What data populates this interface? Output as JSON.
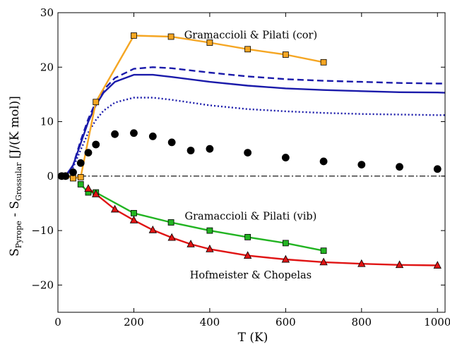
{
  "chart_data": {
    "type": "line",
    "xlabel": "T (K)",
    "ylabel": {
      "parts": [
        "S",
        "Pyrope",
        " - S",
        "Grossular",
        " [J/(K mol)]"
      ]
    },
    "xlim": [
      0,
      1020
    ],
    "ylim": [
      -25,
      30
    ],
    "xticks": [
      0,
      200,
      400,
      600,
      800,
      1000
    ],
    "yticks": [
      -20,
      -10,
      0,
      10,
      20,
      30
    ],
    "grid": false,
    "annotations": [
      {
        "text": "Gramaccioli & Pilati (cor)",
        "x": 508,
        "y": 25.3
      },
      {
        "text": "Gramaccioli & Pilati (vib)",
        "x": 508,
        "y": -8.0
      },
      {
        "text": "Hofmeister & Chopelas",
        "x": 508,
        "y": -18.8
      }
    ],
    "curves": [
      {
        "id": "model-dashed",
        "style": "dashed",
        "color": "#1a1aaa",
        "x": [
          20,
          40,
          60,
          80,
          100,
          120,
          150,
          200,
          250,
          300,
          400,
          500,
          600,
          700,
          800,
          900,
          1000,
          1020
        ],
        "y": [
          0.0,
          2.0,
          6.5,
          10.5,
          13.6,
          15.8,
          18.0,
          19.7,
          20.0,
          19.8,
          19.0,
          18.3,
          17.8,
          17.5,
          17.3,
          17.1,
          17.0,
          17.0
        ]
      },
      {
        "id": "model-solid",
        "style": "solid",
        "color": "#1a1aaa",
        "x": [
          20,
          40,
          60,
          80,
          100,
          120,
          150,
          200,
          250,
          300,
          400,
          500,
          600,
          700,
          800,
          900,
          1000,
          1020
        ],
        "y": [
          0.0,
          2.0,
          6.0,
          10.0,
          13.0,
          15.3,
          17.3,
          18.6,
          18.6,
          18.2,
          17.3,
          16.6,
          16.1,
          15.8,
          15.6,
          15.4,
          15.35,
          15.3
        ]
      },
      {
        "id": "model-dotted",
        "style": "dotted",
        "color": "#1a1aaa",
        "x": [
          20,
          40,
          60,
          80,
          100,
          120,
          150,
          200,
          250,
          300,
          400,
          500,
          600,
          700,
          800,
          900,
          1000,
          1020
        ],
        "y": [
          0.0,
          1.6,
          4.8,
          8.0,
          10.3,
          12.0,
          13.5,
          14.4,
          14.4,
          14.0,
          13.0,
          12.3,
          11.9,
          11.6,
          11.4,
          11.3,
          11.2,
          11.2
        ]
      },
      {
        "id": "zero-line",
        "style": "dashdot",
        "color": "#000000",
        "x": [
          0,
          1020
        ],
        "y": [
          0,
          0
        ]
      }
    ],
    "series": [
      {
        "name": "Gramaccioli & Pilati (cor)",
        "color": "#f5a623",
        "marker": "square",
        "line": true,
        "x": [
          10,
          20,
          40,
          60,
          100,
          200,
          298,
          400,
          500,
          600,
          700
        ],
        "y": [
          0.0,
          0.0,
          -0.4,
          -0.2,
          13.6,
          25.8,
          25.6,
          24.5,
          23.3,
          22.3,
          20.9
        ]
      },
      {
        "name": "Gramaccioli & Pilati (vib)",
        "color": "#22b422",
        "marker": "square",
        "line": true,
        "x": [
          60,
          80,
          100,
          200,
          298,
          400,
          500,
          600,
          700
        ],
        "y": [
          -1.5,
          -3.0,
          -3.0,
          -6.8,
          -8.5,
          -10.0,
          -11.2,
          -12.3,
          -13.7
        ]
      },
      {
        "name": "Hofmeister & Chopelas",
        "color": "#e01414",
        "marker": "triangle",
        "line": true,
        "x": [
          80,
          100,
          150,
          200,
          250,
          300,
          350,
          400,
          500,
          600,
          700,
          800,
          900,
          1000
        ],
        "y": [
          -2.3,
          -3.3,
          -6.1,
          -8.1,
          -9.9,
          -11.3,
          -12.5,
          -13.4,
          -14.6,
          -15.3,
          -15.8,
          -16.1,
          -16.3,
          -16.4
        ]
      },
      {
        "name": "data-black",
        "color": "#000000",
        "marker": "circle",
        "line": false,
        "x": [
          10,
          20,
          40,
          60,
          80,
          100,
          150,
          200,
          250,
          300,
          350,
          400,
          500,
          600,
          700,
          800,
          900,
          1000
        ],
        "y": [
          0.0,
          0.0,
          0.7,
          2.4,
          4.3,
          5.8,
          7.7,
          7.9,
          7.3,
          6.2,
          4.7,
          5.0,
          4.3,
          3.4,
          2.7,
          2.1,
          1.7,
          1.3
        ]
      }
    ]
  }
}
